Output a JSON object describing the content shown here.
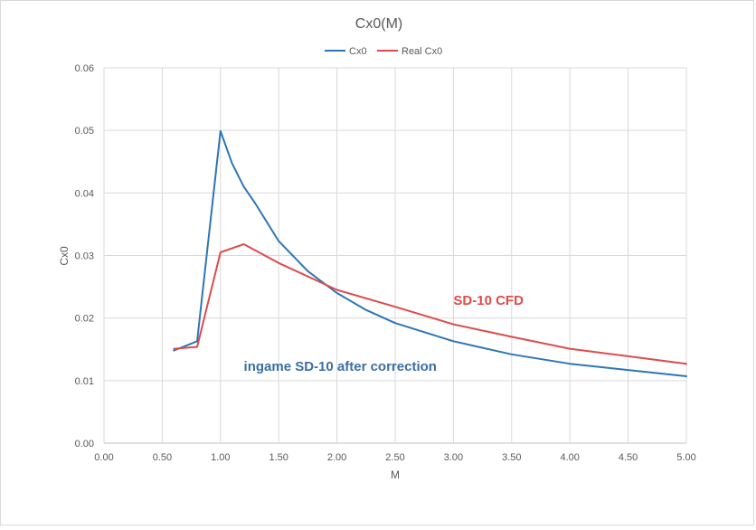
{
  "chart_data": {
    "type": "line",
    "title": "Cx0(M)",
    "xlabel": "M",
    "ylabel": "Cx0",
    "xlim": [
      0,
      5
    ],
    "ylim": [
      0,
      0.06
    ],
    "x_ticks": [
      "0.00",
      "0.50",
      "1.00",
      "1.50",
      "2.00",
      "2.50",
      "3.00",
      "3.50",
      "4.00",
      "4.50",
      "5.00"
    ],
    "y_ticks": [
      "0.00",
      "0.01",
      "0.02",
      "0.03",
      "0.04",
      "0.05",
      "0.06"
    ],
    "grid": true,
    "legend_position": "top",
    "series": [
      {
        "name": "Cx0",
        "color": "#2e75b6",
        "points": [
          [
            0.6,
            0.0148
          ],
          [
            0.8,
            0.0163
          ],
          [
            1.0,
            0.0499
          ],
          [
            1.1,
            0.0447
          ],
          [
            1.2,
            0.041
          ],
          [
            1.3,
            0.0383
          ],
          [
            1.5,
            0.0323
          ],
          [
            1.75,
            0.0275
          ],
          [
            2.0,
            0.024
          ],
          [
            2.25,
            0.0213
          ],
          [
            2.5,
            0.0192
          ],
          [
            3.0,
            0.0163
          ],
          [
            3.5,
            0.0142
          ],
          [
            4.0,
            0.0127
          ],
          [
            4.5,
            0.0117
          ],
          [
            5.0,
            0.0107
          ]
        ]
      },
      {
        "name": "Real Cx0",
        "color": "#e04a4a",
        "points": [
          [
            0.6,
            0.0151
          ],
          [
            0.8,
            0.0154
          ],
          [
            1.0,
            0.0305
          ],
          [
            1.2,
            0.0318
          ],
          [
            1.5,
            0.0288
          ],
          [
            2.0,
            0.0245
          ],
          [
            2.5,
            0.0218
          ],
          [
            3.0,
            0.019
          ],
          [
            3.5,
            0.017
          ],
          [
            4.0,
            0.0151
          ],
          [
            4.5,
            0.0139
          ],
          [
            5.0,
            0.0127
          ]
        ]
      }
    ],
    "annotations": [
      {
        "text": "SD-10 CFD",
        "color": "#e04a4a",
        "at": [
          3.0,
          0.0221
        ]
      },
      {
        "text": "ingame SD-10 after correction",
        "color": "#3b6ea5",
        "at": [
          1.2,
          0.0116
        ]
      }
    ]
  }
}
